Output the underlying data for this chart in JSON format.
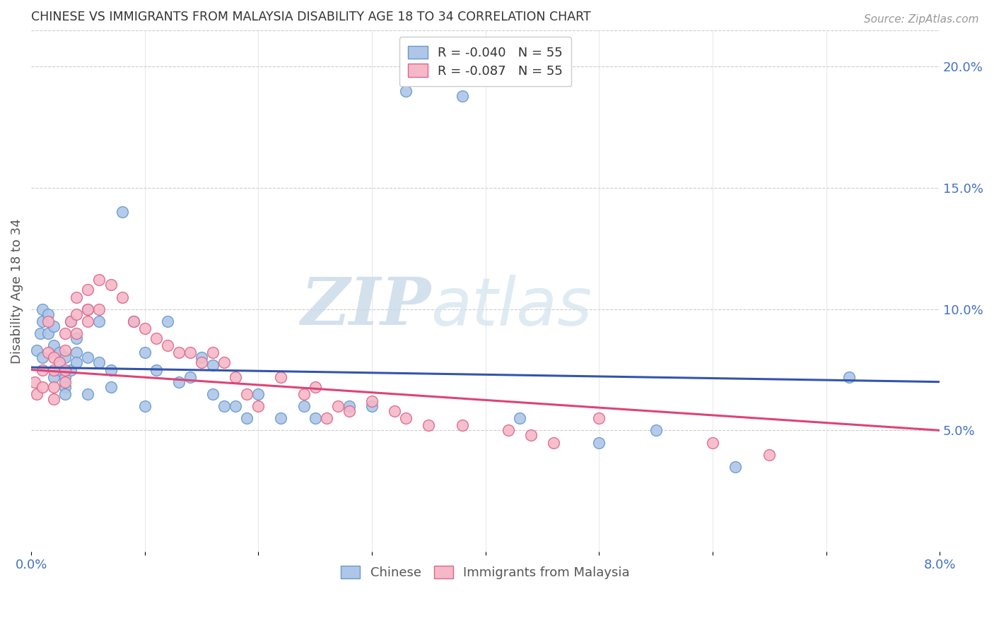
{
  "title": "CHINESE VS IMMIGRANTS FROM MALAYSIA DISABILITY AGE 18 TO 34 CORRELATION CHART",
  "source": "Source: ZipAtlas.com",
  "ylabel": "Disability Age 18 to 34",
  "right_yticks": [
    "5.0%",
    "10.0%",
    "15.0%",
    "20.0%"
  ],
  "right_ytick_vals": [
    0.05,
    0.1,
    0.15,
    0.2
  ],
  "legend_blue": "R = -0.040   N = 55",
  "legend_pink": "R = -0.087   N = 55",
  "legend_bottom_blue": "Chinese",
  "legend_bottom_pink": "Immigrants from Malaysia",
  "watermark_zip": "ZIP",
  "watermark_atlas": "atlas",
  "chinese_color": "#aec6e8",
  "malaysia_color": "#f4b8c8",
  "chinese_edge": "#6699cc",
  "malaysia_edge": "#dd6688",
  "line_blue": "#3355aa",
  "line_pink": "#dd4477",
  "xlim": [
    0.0,
    0.08
  ],
  "ylim": [
    0.0,
    0.215
  ],
  "chinese_x": [
    0.0005,
    0.0008,
    0.001,
    0.001,
    0.001,
    0.0015,
    0.0015,
    0.002,
    0.002,
    0.002,
    0.0025,
    0.0025,
    0.003,
    0.003,
    0.003,
    0.003,
    0.0035,
    0.0035,
    0.004,
    0.004,
    0.004,
    0.005,
    0.005,
    0.005,
    0.006,
    0.006,
    0.007,
    0.007,
    0.008,
    0.009,
    0.01,
    0.01,
    0.011,
    0.012,
    0.013,
    0.014,
    0.015,
    0.016,
    0.016,
    0.017,
    0.018,
    0.019,
    0.02,
    0.022,
    0.024,
    0.025,
    0.028,
    0.03,
    0.033,
    0.038,
    0.043,
    0.05,
    0.055,
    0.062,
    0.072
  ],
  "chinese_y": [
    0.083,
    0.09,
    0.095,
    0.1,
    0.08,
    0.09,
    0.098,
    0.085,
    0.093,
    0.072,
    0.075,
    0.082,
    0.08,
    0.072,
    0.068,
    0.065,
    0.095,
    0.075,
    0.088,
    0.082,
    0.078,
    0.1,
    0.08,
    0.065,
    0.095,
    0.078,
    0.068,
    0.075,
    0.14,
    0.095,
    0.082,
    0.06,
    0.075,
    0.095,
    0.07,
    0.072,
    0.08,
    0.065,
    0.077,
    0.06,
    0.06,
    0.055,
    0.065,
    0.055,
    0.06,
    0.055,
    0.06,
    0.06,
    0.19,
    0.188,
    0.055,
    0.045,
    0.05,
    0.035,
    0.072
  ],
  "malaysia_x": [
    0.0003,
    0.0005,
    0.001,
    0.001,
    0.0015,
    0.0015,
    0.002,
    0.002,
    0.002,
    0.002,
    0.0025,
    0.003,
    0.003,
    0.003,
    0.003,
    0.0035,
    0.004,
    0.004,
    0.004,
    0.005,
    0.005,
    0.005,
    0.006,
    0.006,
    0.007,
    0.008,
    0.009,
    0.01,
    0.011,
    0.012,
    0.013,
    0.014,
    0.015,
    0.016,
    0.017,
    0.018,
    0.019,
    0.02,
    0.022,
    0.024,
    0.025,
    0.026,
    0.027,
    0.028,
    0.03,
    0.032,
    0.033,
    0.035,
    0.038,
    0.042,
    0.044,
    0.046,
    0.05,
    0.06,
    0.065
  ],
  "malaysia_y": [
    0.07,
    0.065,
    0.075,
    0.068,
    0.082,
    0.095,
    0.08,
    0.075,
    0.068,
    0.063,
    0.078,
    0.09,
    0.083,
    0.075,
    0.07,
    0.095,
    0.105,
    0.098,
    0.09,
    0.108,
    0.1,
    0.095,
    0.112,
    0.1,
    0.11,
    0.105,
    0.095,
    0.092,
    0.088,
    0.085,
    0.082,
    0.082,
    0.078,
    0.082,
    0.078,
    0.072,
    0.065,
    0.06,
    0.072,
    0.065,
    0.068,
    0.055,
    0.06,
    0.058,
    0.062,
    0.058,
    0.055,
    0.052,
    0.052,
    0.05,
    0.048,
    0.045,
    0.055,
    0.045,
    0.04
  ]
}
